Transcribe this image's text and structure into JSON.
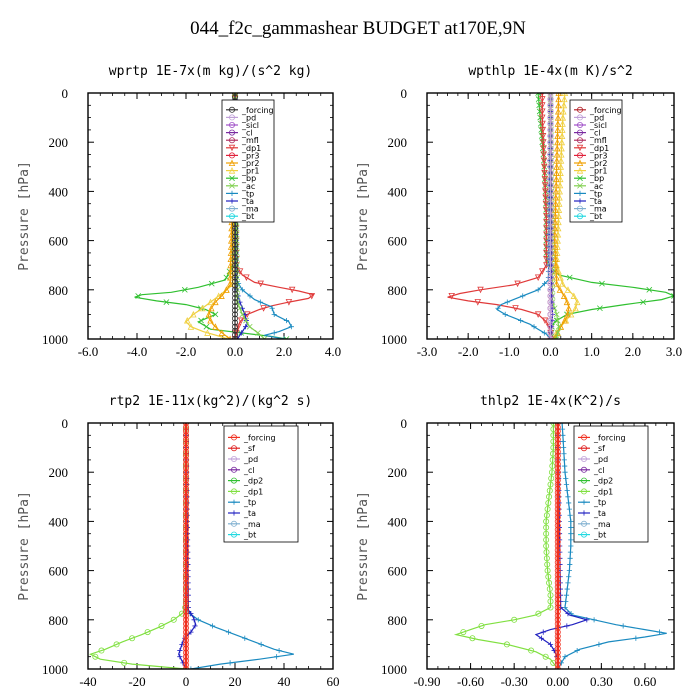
{
  "suptitle": "044_f2c_gammashear  BUDGET at170E,9N",
  "colors": {
    "_forcing": "#b3232a",
    "_pd": "#c0a0d8",
    "_sicl": "#a050c8",
    "_cl": "#7a2aa0",
    "_mfl": "#b03060",
    "_dp1": "#e03a3a",
    "_pr3": "#e0203a",
    "_pr2": "#f0a000",
    "_pr1": "#f0d040",
    "_bp": "#30c030",
    "_ac": "#80d050",
    "_tp": "#1a8ac0",
    "_ta": "#2020c0",
    "_ma": "#80b0d0",
    "_bt": "#20d8e0",
    "_sf": "#e02020",
    "_dp2": "#30c030",
    "_forcing_b": "#f03020",
    "_cl_b": "#f0d040",
    "_dp1_b": "#80e040",
    "_pd_b": "#f0a030"
  },
  "chart_data": [
    {
      "id": "wprtp",
      "type": "line",
      "title": "wprtp   1E-7x(m kg)/(s^2 kg)",
      "ylabel": "Pressure [hPa]",
      "xlim": [
        -6,
        4
      ],
      "ylim": [
        0,
        1000
      ],
      "xticks": [
        "-6.0",
        "-4.0",
        "-2.0",
        "0.0",
        "2.0",
        "4.0"
      ],
      "xtick_values": [
        -6,
        -4,
        -2,
        0,
        2,
        4
      ],
      "yticks": [
        "0",
        "200",
        "400",
        "600",
        "800",
        "1000"
      ],
      "legend": [
        "_forcing",
        "_pd",
        "_sicl",
        "_cl",
        "_mfl",
        "_dp1",
        "_pr3",
        "_pr2",
        "_pr1",
        "_bp",
        "_ac",
        "_tp",
        "_ta",
        "_ma",
        "_bt"
      ],
      "series": [
        {
          "name": "_bp",
          "color": "#30c030",
          "marker": "x",
          "p": [
            0,
            600,
            700,
            760,
            790,
            810,
            820,
            830,
            845,
            860,
            880,
            900,
            930,
            960,
            990,
            1000
          ],
          "v": [
            0,
            0,
            -0.1,
            -0.4,
            -1.5,
            -2.6,
            -3.8,
            -4.1,
            -3.2,
            -2.0,
            -1.2,
            -0.8,
            -1.5,
            -1.0,
            1.5,
            2.1
          ]
        },
        {
          "name": "_dp1",
          "color": "#e03a3a",
          "marker": "v",
          "p": [
            0,
            700,
            740,
            770,
            790,
            805,
            820,
            835,
            850,
            865,
            880,
            900,
            930,
            960,
            990,
            1000
          ],
          "v": [
            0,
            0.05,
            0.3,
            0.8,
            1.8,
            2.6,
            3.2,
            3.0,
            2.2,
            1.5,
            1.0,
            0.5,
            0.2,
            0.1,
            0,
            0
          ]
        },
        {
          "name": "_pr1",
          "color": "#f0d040",
          "marker": "^",
          "p": [
            0,
            780,
            820,
            850,
            880,
            900,
            930,
            950,
            970,
            990,
            1000
          ],
          "v": [
            0,
            -0.1,
            -0.6,
            -1.0,
            -1.4,
            -1.7,
            -2.0,
            -1.8,
            -1.3,
            -0.6,
            -0.3
          ]
        },
        {
          "name": "_pr2",
          "color": "#f0a000",
          "marker": "^",
          "p": [
            0,
            780,
            820,
            850,
            880,
            910,
            940,
            970,
            1000
          ],
          "v": [
            0,
            -0.2,
            -0.5,
            -0.8,
            -1.0,
            -1.1,
            -0.9,
            -0.6,
            -0.2
          ]
        },
        {
          "name": "_tp",
          "color": "#1a8ac0",
          "marker": "+",
          "p": [
            0,
            760,
            800,
            840,
            870,
            900,
            930,
            950,
            970,
            985,
            1000
          ],
          "v": [
            0,
            0.05,
            0.3,
            0.8,
            1.5,
            1.6,
            2.2,
            2.3,
            1.8,
            1.2,
            2.0
          ]
        },
        {
          "name": "_ta",
          "color": "#2020c0",
          "marker": "+",
          "p": [
            0,
            800,
            850,
            900,
            940,
            970,
            1000
          ],
          "v": [
            0,
            0.05,
            0.2,
            0.4,
            0.5,
            0.3,
            0.1
          ]
        },
        {
          "name": "_ac",
          "color": "#80d050",
          "marker": "x",
          "p": [
            0,
            850,
            900,
            950,
            980,
            1000
          ],
          "v": [
            0,
            0.1,
            0.3,
            0.6,
            1.0,
            1.2
          ]
        },
        {
          "name": "_forcing",
          "color": "#303030",
          "marker": "o",
          "p": [
            0,
            100,
            200,
            300,
            400,
            500,
            600,
            700,
            800,
            900,
            1000
          ],
          "v": [
            0,
            0,
            0,
            0,
            0,
            0,
            0,
            0,
            0,
            0,
            0
          ]
        }
      ]
    },
    {
      "id": "wpthlp",
      "type": "line",
      "title": "wpthlp   1E-4x(m K)/s^2",
      "ylabel": "Pressure [hPa]",
      "xlim": [
        -3,
        3
      ],
      "ylim": [
        0,
        1000
      ],
      "xticks": [
        "-3.0",
        "-2.0",
        "-1.0",
        "0.0",
        "1.0",
        "2.0",
        "3.0"
      ],
      "xtick_values": [
        -3,
        -2,
        -1,
        0,
        1,
        2,
        3
      ],
      "yticks": [
        "0",
        "200",
        "400",
        "600",
        "800",
        "1000"
      ],
      "legend": [
        "_forcing",
        "_pd",
        "_sicl",
        "_cl",
        "_mfl",
        "_dp1",
        "_pr3",
        "_pr2",
        "_pr1",
        "_bp",
        "_ac",
        "_tp",
        "_ta",
        "_ma",
        "_bt"
      ],
      "series": [
        {
          "name": "_bp",
          "color": "#30c030",
          "marker": "x",
          "p": [
            0,
            100,
            200,
            300,
            400,
            500,
            600,
            650,
            700,
            740,
            770,
            790,
            810,
            825,
            840,
            860,
            880,
            900,
            930,
            960,
            990,
            1000
          ],
          "v": [
            -0.3,
            -0.25,
            -0.2,
            -0.15,
            -0.12,
            -0.1,
            -0.1,
            -0.1,
            -0.05,
            0.2,
            1.0,
            2.0,
            2.8,
            3.0,
            2.7,
            1.8,
            1.0,
            0.4,
            0.1,
            0,
            0.05,
            0.1
          ]
        },
        {
          "name": "_dp1",
          "color": "#e03a3a",
          "marker": "v",
          "p": [
            0,
            100,
            300,
            500,
            700,
            750,
            780,
            800,
            815,
            830,
            845,
            860,
            880,
            900,
            930,
            960,
            1000
          ],
          "v": [
            -0.2,
            -0.2,
            -0.15,
            -0.1,
            -0.1,
            -0.3,
            -0.9,
            -1.7,
            -2.2,
            -2.5,
            -2.0,
            -1.3,
            -0.7,
            -0.3,
            -0.1,
            0,
            0
          ]
        },
        {
          "name": "_tp",
          "color": "#1a8ac0",
          "marker": "+",
          "p": [
            0,
            760,
            800,
            840,
            860,
            880,
            900,
            920,
            940,
            960,
            980,
            1000
          ],
          "v": [
            0,
            -0.05,
            -0.3,
            -0.9,
            -1.2,
            -1.3,
            -1.1,
            -0.8,
            -0.5,
            -0.3,
            -0.1,
            0
          ]
        },
        {
          "name": "_pr1",
          "color": "#f0d040",
          "marker": "^",
          "p": [
            0,
            100,
            300,
            500,
            700,
            780,
            820,
            850,
            880,
            910,
            940,
            970,
            1000
          ],
          "v": [
            0.35,
            0.3,
            0.25,
            0.2,
            0.15,
            0.3,
            0.55,
            0.65,
            0.6,
            0.45,
            0.3,
            0.15,
            0.1
          ]
        },
        {
          "name": "_pr2",
          "color": "#f0a000",
          "marker": "^",
          "p": [
            0,
            300,
            600,
            780,
            830,
            870,
            910,
            950,
            1000
          ],
          "v": [
            0.2,
            0.15,
            0.1,
            0.15,
            0.35,
            0.45,
            0.4,
            0.25,
            0.1
          ]
        },
        {
          "name": "_ac",
          "color": "#80d050",
          "marker": "x",
          "p": [
            0,
            850,
            900,
            950,
            1000
          ],
          "v": [
            0,
            0.05,
            0.15,
            0.2,
            0.15
          ]
        },
        {
          "name": "_ta",
          "color": "#2020c0",
          "marker": "+",
          "p": [
            0,
            800,
            900,
            1000
          ],
          "v": [
            0,
            0.02,
            0.05,
            0
          ]
        },
        {
          "name": "_mfl",
          "color": "#b03060",
          "marker": "o",
          "p": [
            0,
            300,
            700,
            1000
          ],
          "v": [
            0,
            0,
            0,
            0
          ]
        },
        {
          "name": "_pd",
          "color": "#c0a0d8",
          "marker": "o",
          "p": [
            0,
            100,
            200,
            300,
            400,
            500,
            600,
            700,
            800,
            900,
            1000
          ],
          "v": [
            0,
            0,
            0,
            0,
            0,
            0,
            0,
            0,
            0,
            0,
            0
          ]
        }
      ]
    },
    {
      "id": "rtp2",
      "type": "line",
      "title": "rtp2   1E-11x(kg^2)/(kg^2 s)",
      "ylabel": "Pressure [hPa]",
      "xlim": [
        -40,
        60
      ],
      "ylim": [
        0,
        1000
      ],
      "xticks": [
        "-40",
        "-20",
        "0",
        "20",
        "40",
        "60"
      ],
      "xtick_values": [
        -40,
        -20,
        0,
        20,
        40,
        60
      ],
      "yticks": [
        "0",
        "200",
        "400",
        "600",
        "800",
        "1000"
      ],
      "legend": [
        "_forcing",
        "_sf",
        "_pd",
        "_cl",
        "_dp2",
        "_dp1",
        "_tp",
        "_ta",
        "_ma",
        "_bt"
      ],
      "series": [
        {
          "name": "_dp1",
          "color": "#80e040",
          "marker": "o",
          "p": [
            0,
            740,
            770,
            800,
            830,
            860,
            890,
            920,
            940,
            960,
            980,
            1000
          ],
          "v": [
            0,
            0,
            -1,
            -5,
            -11,
            -18,
            -26,
            -33,
            -39,
            -35,
            -22,
            0
          ]
        },
        {
          "name": "_tp",
          "color": "#1a8ac0",
          "marker": "+",
          "p": [
            0,
            740,
            770,
            800,
            830,
            860,
            890,
            920,
            940,
            960,
            980,
            1000
          ],
          "v": [
            0,
            0,
            1,
            5,
            12,
            20,
            28,
            36,
            44,
            30,
            14,
            2
          ]
        },
        {
          "name": "_ta",
          "color": "#2020c0",
          "marker": "+",
          "p": [
            0,
            760,
            790,
            820,
            850,
            880,
            910,
            940,
            960,
            980,
            1000
          ],
          "v": [
            0,
            1,
            3,
            4,
            2,
            -1,
            -2,
            -3,
            -2,
            -1,
            0
          ]
        },
        {
          "name": "_forcing",
          "color": "#f03020",
          "marker": "o",
          "p": [
            0,
            100,
            200,
            300,
            400,
            500,
            600,
            700,
            800,
            900,
            1000
          ],
          "v": [
            0,
            0,
            0,
            0,
            0,
            0,
            0,
            0,
            0,
            0,
            0
          ]
        }
      ]
    },
    {
      "id": "thlp2",
      "type": "line",
      "title": "thlp2   1E-4x(K^2)/s",
      "ylabel": "Pressure [hPa]",
      "xlim": [
        -0.9,
        0.8
      ],
      "ylim": [
        0,
        1000
      ],
      "xticks": [
        "-0.90",
        "-0.60",
        "-0.30",
        "0.00",
        "0.30",
        "0.60"
      ],
      "xtick_values": [
        -0.9,
        -0.6,
        -0.3,
        0,
        0.3,
        0.6
      ],
      "yticks": [
        "0",
        "200",
        "400",
        "600",
        "800",
        "1000"
      ],
      "legend": [
        "_forcing",
        "_sf",
        "_pd",
        "_cl",
        "_dp2",
        "_dp1",
        "_tp",
        "_ta",
        "_ma",
        "_bt"
      ],
      "series": [
        {
          "name": "_dp1",
          "color": "#80e040",
          "marker": "o",
          "p": [
            0,
            100,
            200,
            300,
            400,
            500,
            600,
            700,
            750,
            780,
            800,
            820,
            840,
            860,
            880,
            900,
            930,
            960,
            1000
          ],
          "v": [
            -0.03,
            -0.03,
            -0.04,
            -0.06,
            -0.08,
            -0.08,
            -0.07,
            -0.05,
            -0.05,
            -0.15,
            -0.3,
            -0.5,
            -0.6,
            -0.7,
            -0.55,
            -0.35,
            -0.15,
            -0.05,
            0
          ]
        },
        {
          "name": "_tp",
          "color": "#1a8ac0",
          "marker": "+",
          "p": [
            0,
            100,
            200,
            300,
            400,
            500,
            600,
            700,
            750,
            780,
            800,
            820,
            840,
            855,
            870,
            890,
            920,
            950,
            1000
          ],
          "v": [
            0.03,
            0.04,
            0.05,
            0.07,
            0.09,
            0.09,
            0.08,
            0.06,
            0.05,
            0.1,
            0.25,
            0.4,
            0.6,
            0.75,
            0.6,
            0.35,
            0.15,
            0.05,
            0
          ]
        },
        {
          "name": "_ta",
          "color": "#2020c0",
          "marker": "+",
          "p": [
            0,
            750,
            780,
            800,
            820,
            840,
            860,
            880,
            900,
            930,
            960,
            1000
          ],
          "v": [
            0,
            0.02,
            0.08,
            0.2,
            0.1,
            -0.05,
            -0.15,
            -0.1,
            -0.05,
            -0.02,
            0,
            0
          ]
        },
        {
          "name": "_forcing",
          "color": "#f03020",
          "marker": "o",
          "p": [
            0,
            100,
            200,
            300,
            400,
            500,
            600,
            700,
            800,
            900,
            1000
          ],
          "v": [
            0,
            0,
            0,
            0,
            0,
            0,
            0,
            0,
            0,
            0,
            0
          ]
        }
      ]
    }
  ]
}
